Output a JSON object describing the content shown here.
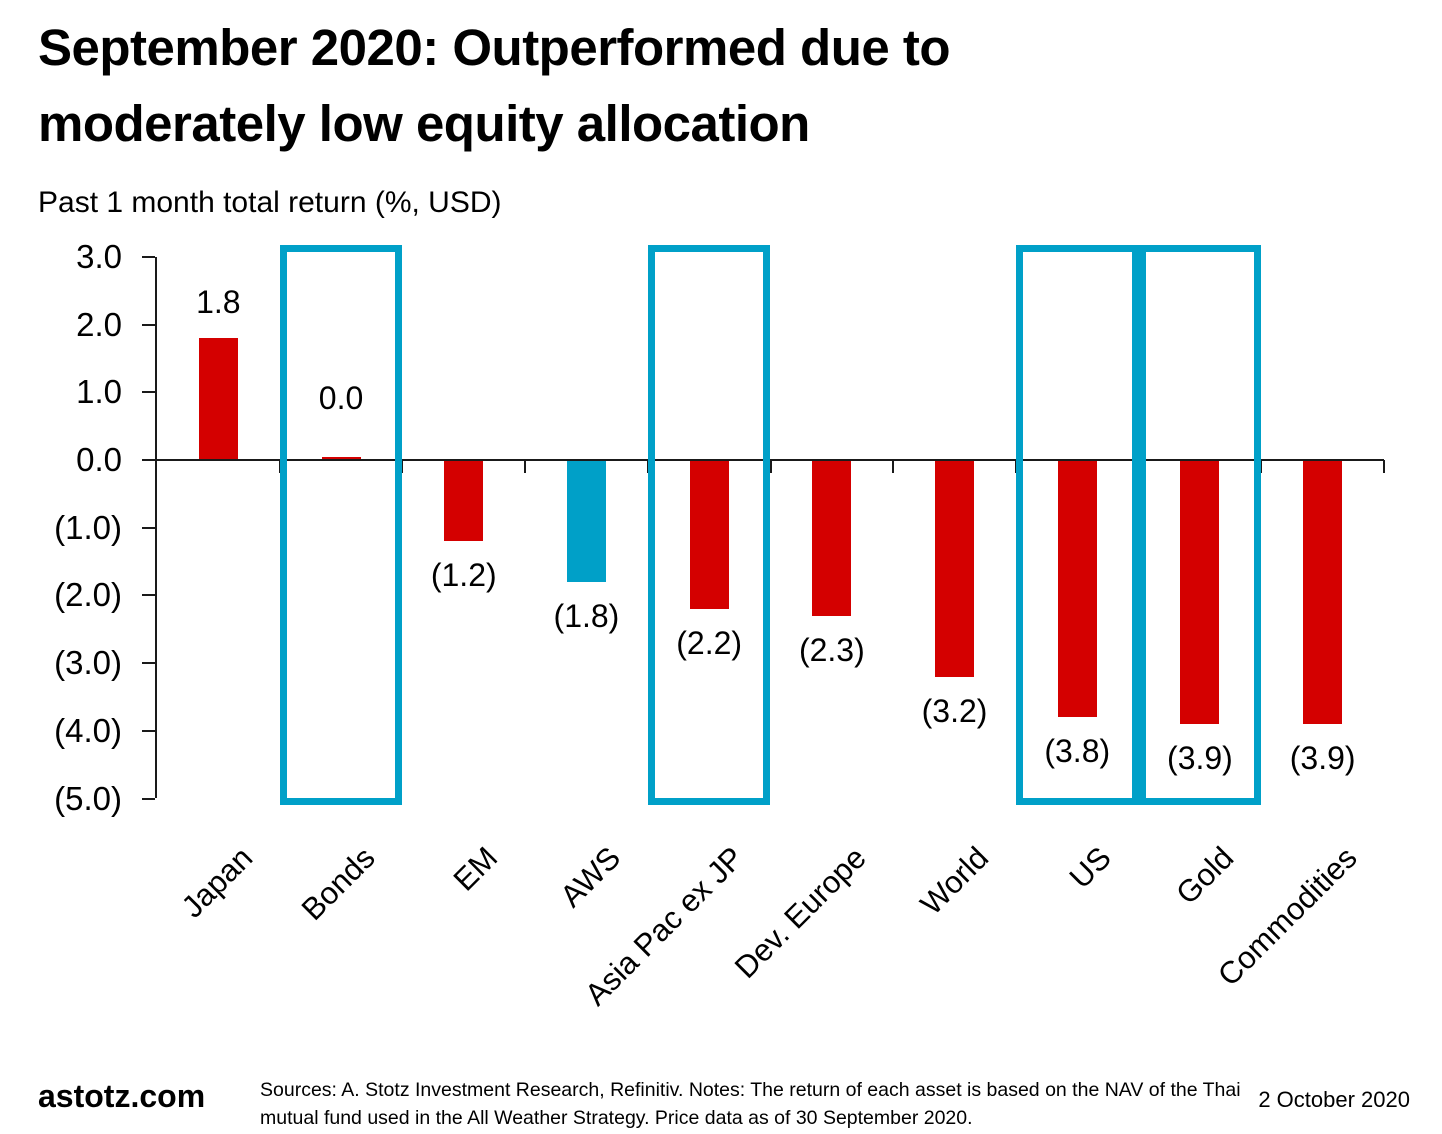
{
  "title": {
    "line1": "September 2020: Outperformed due to",
    "line2": "moderately low equity allocation"
  },
  "subtitle": "Past 1 month total return (%, USD)",
  "chart_data": {
    "type": "bar",
    "title": "September 2020: Outperformed due to moderately low equity allocation",
    "subtitle": "Past 1 month total return (%, USD)",
    "xlabel": "",
    "ylabel": "Past 1 month total return (%, USD)",
    "categories": [
      "Japan",
      "Bonds",
      "EM",
      "AWS",
      "Asia Pac ex JP",
      "Dev. Europe",
      "World",
      "US",
      "Gold",
      "Commodities"
    ],
    "values": [
      1.8,
      0.0,
      -1.2,
      -1.8,
      -2.2,
      -2.3,
      -3.2,
      -3.8,
      -3.9,
      -3.9
    ],
    "value_labels": [
      "1.8",
      "0.0",
      "(1.2)",
      "(1.8)",
      "(2.2)",
      "(2.3)",
      "(3.2)",
      "(3.8)",
      "(3.9)",
      "(3.9)"
    ],
    "bar_colors": [
      "#d40000",
      "#d40000",
      "#d40000",
      "#00a0c8",
      "#d40000",
      "#d40000",
      "#d40000",
      "#d40000",
      "#d40000",
      "#d40000"
    ],
    "highlighted_categories": [
      "Bonds",
      "Asia Pac ex JP",
      "US",
      "Gold"
    ],
    "highlight_indexes": [
      1,
      4,
      7,
      8
    ],
    "highlight_box_color": "#00a0c8",
    "y_axis": {
      "labels": [
        "3.0",
        "2.0",
        "1.0",
        "0.0",
        "(1.0)",
        "(2.0)",
        "(3.0)",
        "(4.0)",
        "(5.0)"
      ],
      "values": [
        3,
        2,
        1,
        0,
        -1,
        -2,
        -3,
        -4,
        -5
      ]
    },
    "ylim": [
      -5,
      3
    ],
    "grid": false,
    "legend": false
  },
  "colors": {
    "bar_red": "#d40000",
    "accent_blue": "#00a0c8",
    "axis_black": "#1a1a1a"
  },
  "footer": {
    "brand": "astotz.com",
    "sources_line1": "Sources: A. Stotz Investment Research, Refinitiv. Notes: The return of each asset is based on the NAV of the Thai",
    "sources_line2": "mutual fund used in the All Weather Strategy. Price data as of 30 September 2020.",
    "date": "2 October 2020"
  }
}
